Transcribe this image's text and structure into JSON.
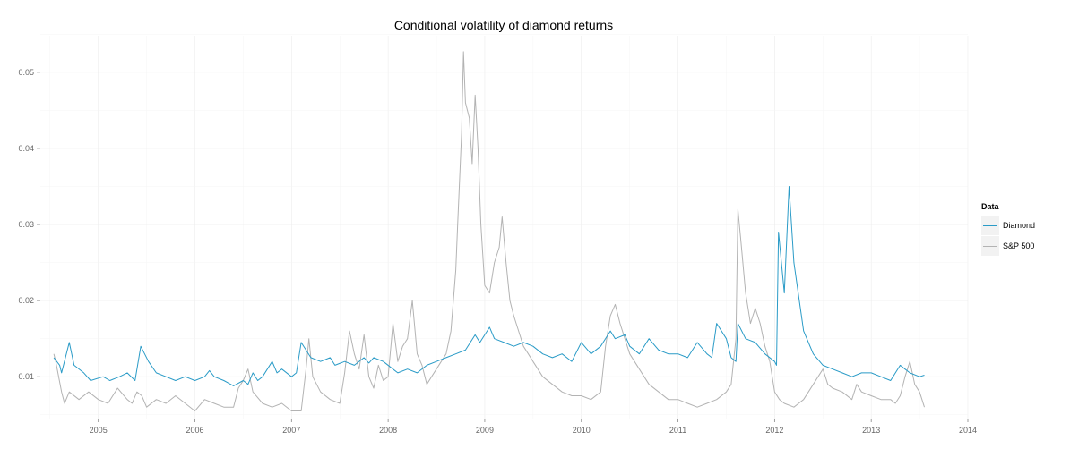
{
  "chart_data": {
    "type": "line",
    "title": "Conditional volatility of diamond returns",
    "xlabel": "",
    "ylabel": "",
    "xlim": [
      2004.4,
      2014.0
    ],
    "ylim": [
      0.0045,
      0.0548
    ],
    "x_ticks": [
      "2005",
      "2006",
      "2007",
      "2008",
      "2009",
      "2010",
      "2011",
      "2012",
      "2013",
      "2014"
    ],
    "y_ticks": [
      "0.01",
      "0.02",
      "0.03",
      "0.04",
      "0.05"
    ],
    "grid": true,
    "legend_title": "Data",
    "legend_position": "right",
    "series": [
      {
        "name": "Diamond",
        "color": "#2a9bc7",
        "x": [
          2004.54,
          2004.6,
          2004.62,
          2004.7,
          2004.75,
          2004.85,
          2004.92,
          2005.05,
          2005.12,
          2005.22,
          2005.3,
          2005.38,
          2005.44,
          2005.48,
          2005.52,
          2005.6,
          2005.7,
          2005.8,
          2005.9,
          2006.0,
          2006.1,
          2006.15,
          2006.2,
          2006.3,
          2006.4,
          2006.5,
          2006.55,
          2006.6,
          2006.65,
          2006.7,
          2006.8,
          2006.85,
          2006.9,
          2007.0,
          2007.05,
          2007.1,
          2007.2,
          2007.3,
          2007.4,
          2007.45,
          2007.55,
          2007.65,
          2007.75,
          2007.8,
          2007.85,
          2007.95,
          2008.05,
          2008.1,
          2008.2,
          2008.3,
          2008.4,
          2008.5,
          2008.6,
          2008.7,
          2008.8,
          2008.9,
          2008.95,
          2009.05,
          2009.1,
          2009.2,
          2009.3,
          2009.4,
          2009.5,
          2009.6,
          2009.7,
          2009.8,
          2009.9,
          2010.0,
          2010.1,
          2010.2,
          2010.3,
          2010.35,
          2010.45,
          2010.5,
          2010.6,
          2010.7,
          2010.8,
          2010.9,
          2011.0,
          2011.1,
          2011.2,
          2011.3,
          2011.35,
          2011.4,
          2011.5,
          2011.55,
          2011.6,
          2011.62,
          2011.7,
          2011.8,
          2011.9,
          2012.0,
          2012.02,
          2012.04,
          2012.1,
          2012.15,
          2012.2,
          2012.3,
          2012.4,
          2012.5,
          2012.6,
          2012.7,
          2012.8,
          2012.9,
          2013.0,
          2013.1,
          2013.2,
          2013.3,
          2013.35,
          2013.4,
          2013.5,
          2013.55
        ],
        "y": [
          0.0125,
          0.0115,
          0.0105,
          0.0145,
          0.0115,
          0.0105,
          0.0095,
          0.01,
          0.0095,
          0.01,
          0.0105,
          0.0095,
          0.014,
          0.013,
          0.012,
          0.0105,
          0.01,
          0.0095,
          0.01,
          0.0095,
          0.01,
          0.0108,
          0.01,
          0.0095,
          0.0088,
          0.0095,
          0.009,
          0.0105,
          0.0095,
          0.01,
          0.012,
          0.0105,
          0.011,
          0.01,
          0.0105,
          0.0145,
          0.0125,
          0.012,
          0.0125,
          0.0115,
          0.012,
          0.0115,
          0.0125,
          0.0118,
          0.0125,
          0.012,
          0.011,
          0.0105,
          0.011,
          0.0105,
          0.0115,
          0.012,
          0.0125,
          0.013,
          0.0135,
          0.0155,
          0.0145,
          0.0165,
          0.015,
          0.0145,
          0.014,
          0.0145,
          0.014,
          0.013,
          0.0125,
          0.013,
          0.012,
          0.0145,
          0.013,
          0.014,
          0.016,
          0.015,
          0.0155,
          0.014,
          0.013,
          0.015,
          0.0135,
          0.013,
          0.013,
          0.0125,
          0.0145,
          0.013,
          0.0125,
          0.017,
          0.015,
          0.0125,
          0.012,
          0.017,
          0.015,
          0.0145,
          0.013,
          0.012,
          0.0115,
          0.029,
          0.021,
          0.035,
          0.025,
          0.016,
          0.013,
          0.0115,
          0.011,
          0.0105,
          0.01,
          0.0105,
          0.0105,
          0.01,
          0.0095,
          0.0115,
          0.011,
          0.0105,
          0.01,
          0.0102
        ]
      },
      {
        "name": "S&P 500",
        "color": "#b3b3b3",
        "x": [
          2004.54,
          2004.56,
          2004.62,
          2004.65,
          2004.7,
          2004.8,
          2004.9,
          2005.0,
          2005.1,
          2005.2,
          2005.3,
          2005.35,
          2005.4,
          2005.45,
          2005.5,
          2005.6,
          2005.7,
          2005.8,
          2005.9,
          2006.0,
          2006.1,
          2006.2,
          2006.3,
          2006.4,
          2006.45,
          2006.5,
          2006.55,
          2006.6,
          2006.7,
          2006.8,
          2006.9,
          2007.0,
          2007.1,
          2007.15,
          2007.18,
          2007.22,
          2007.3,
          2007.4,
          2007.5,
          2007.55,
          2007.6,
          2007.65,
          2007.7,
          2007.75,
          2007.8,
          2007.85,
          2007.9,
          2007.95,
          2008.0,
          2008.05,
          2008.1,
          2008.15,
          2008.2,
          2008.25,
          2008.3,
          2008.35,
          2008.4,
          2008.45,
          2008.5,
          2008.55,
          2008.6,
          2008.65,
          2008.7,
          2008.72,
          2008.76,
          2008.78,
          2008.8,
          2008.84,
          2008.87,
          2008.9,
          2008.93,
          2008.96,
          2009.0,
          2009.05,
          2009.1,
          2009.15,
          2009.18,
          2009.22,
          2009.26,
          2009.3,
          2009.35,
          2009.4,
          2009.45,
          2009.5,
          2009.55,
          2009.6,
          2009.7,
          2009.8,
          2009.9,
          2010.0,
          2010.1,
          2010.2,
          2010.25,
          2010.3,
          2010.35,
          2010.4,
          2010.45,
          2010.5,
          2010.6,
          2010.7,
          2010.8,
          2010.9,
          2011.0,
          2011.1,
          2011.2,
          2011.3,
          2011.4,
          2011.5,
          2011.55,
          2011.6,
          2011.62,
          2011.65,
          2011.7,
          2011.75,
          2011.8,
          2011.85,
          2011.9,
          2011.95,
          2012.0,
          2012.05,
          2012.1,
          2012.2,
          2012.3,
          2012.4,
          2012.45,
          2012.5,
          2012.55,
          2012.6,
          2012.7,
          2012.8,
          2012.85,
          2012.9,
          2013.0,
          2013.1,
          2013.2,
          2013.25,
          2013.3,
          2013.35,
          2013.4,
          2013.45,
          2013.5,
          2013.55
        ],
        "y": [
          0.013,
          0.012,
          0.008,
          0.0065,
          0.008,
          0.007,
          0.008,
          0.007,
          0.0065,
          0.0085,
          0.007,
          0.0065,
          0.008,
          0.0075,
          0.006,
          0.007,
          0.0065,
          0.0075,
          0.0065,
          0.0055,
          0.007,
          0.0065,
          0.006,
          0.006,
          0.0085,
          0.0095,
          0.011,
          0.008,
          0.0065,
          0.006,
          0.0065,
          0.0055,
          0.0055,
          0.011,
          0.015,
          0.01,
          0.008,
          0.007,
          0.0065,
          0.0105,
          0.016,
          0.013,
          0.011,
          0.0155,
          0.01,
          0.0085,
          0.0115,
          0.0095,
          0.01,
          0.017,
          0.012,
          0.014,
          0.015,
          0.02,
          0.013,
          0.0115,
          0.009,
          0.01,
          0.011,
          0.012,
          0.013,
          0.016,
          0.024,
          0.03,
          0.042,
          0.0527,
          0.046,
          0.044,
          0.038,
          0.047,
          0.04,
          0.03,
          0.022,
          0.021,
          0.025,
          0.027,
          0.031,
          0.025,
          0.02,
          0.018,
          0.016,
          0.014,
          0.013,
          0.012,
          0.011,
          0.01,
          0.009,
          0.008,
          0.0075,
          0.0075,
          0.007,
          0.008,
          0.014,
          0.018,
          0.0195,
          0.017,
          0.015,
          0.013,
          0.011,
          0.009,
          0.008,
          0.007,
          0.007,
          0.0065,
          0.006,
          0.0065,
          0.007,
          0.008,
          0.009,
          0.015,
          0.032,
          0.028,
          0.021,
          0.017,
          0.019,
          0.017,
          0.014,
          0.012,
          0.008,
          0.007,
          0.0065,
          0.006,
          0.007,
          0.009,
          0.01,
          0.011,
          0.009,
          0.0085,
          0.008,
          0.007,
          0.009,
          0.008,
          0.0075,
          0.007,
          0.007,
          0.0065,
          0.0075,
          0.01,
          0.012,
          0.009,
          0.008,
          0.006
        ]
      }
    ]
  }
}
